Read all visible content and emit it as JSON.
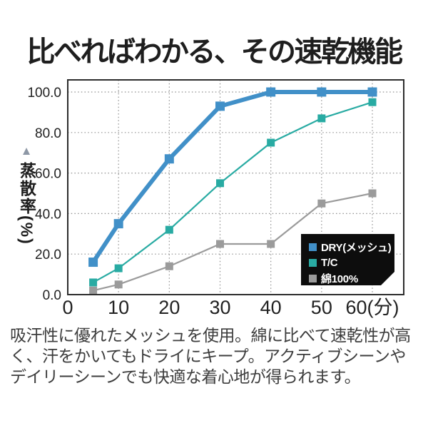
{
  "title": "比べればわかる、その速乾機能",
  "description": "吸汗性に優れたメッシュを使用。綿に比べて速乾性が高く、汗をかいてもドライにキープ。アクティブシーンやデイリーシーンでも快適な着心地が得られます。",
  "chart_data": {
    "type": "line",
    "title": "比べればわかる、その速乾機能",
    "xlabel": "(分)",
    "ylabel": "蒸散率(%)",
    "ylabel_marker": "▲",
    "x": [
      5,
      10,
      20,
      30,
      40,
      50,
      60
    ],
    "series": [
      {
        "name": "DRY(メッシュ)",
        "color": "#4190c8",
        "line_width": 6,
        "marker_size": 13,
        "values": [
          16,
          35,
          67,
          93,
          100,
          100,
          100
        ]
      },
      {
        "name": "T/C",
        "color": "#29aba3",
        "line_width": 2.2,
        "marker_size": 11,
        "values": [
          6,
          13,
          32,
          55,
          75,
          87,
          95
        ]
      },
      {
        "name": "綿100%",
        "color": "#9b9b9b",
        "line_width": 2.2,
        "marker_size": 11,
        "values": [
          2,
          5,
          14,
          25,
          25,
          45,
          50
        ]
      }
    ],
    "x_tick_values": [
      0,
      10,
      20,
      30,
      40,
      50,
      60
    ],
    "x_ticks": [
      "0",
      "10",
      "20",
      "30",
      "40",
      "50",
      "60(分)"
    ],
    "y_tick_values": [
      0,
      20,
      40,
      60,
      80,
      100
    ],
    "y_ticks": [
      "0.0",
      "20.0",
      "40.0",
      "60.0",
      "80.0",
      "100.0"
    ],
    "xlim": [
      0,
      66
    ],
    "ylim": [
      0,
      100
    ],
    "grid": true,
    "grid_color": "#8f8f8f",
    "axis_color": "#2d2d2d",
    "tick_label_color": "#222222",
    "legend_position": "inside bottom-right",
    "legend_bg": "#0d0d0d",
    "legend_text_color": "#ffffff"
  }
}
